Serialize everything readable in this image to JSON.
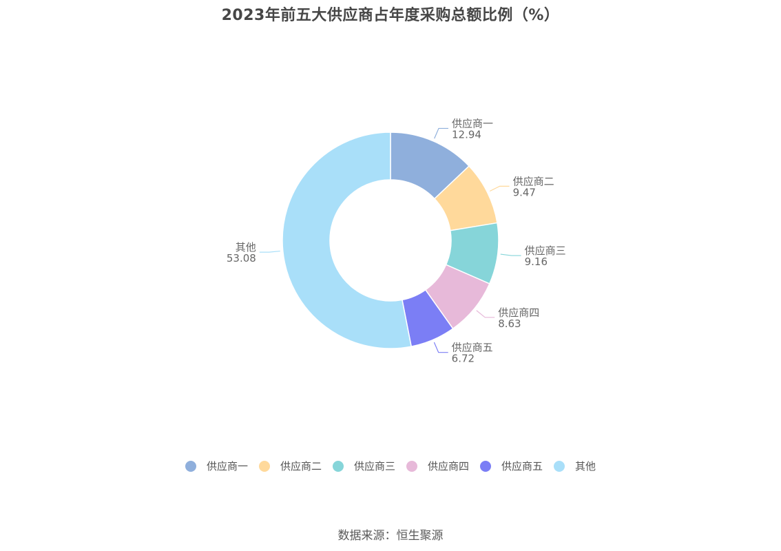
{
  "title": "2023年前五大供应商占年度采购总额比例（%）",
  "source": "数据来源：恒生聚源",
  "chart_data": {
    "type": "pie",
    "subtype": "donut",
    "title": "2023年前五大供应商占年度采购总额比例（%）",
    "legend_position": "bottom",
    "series": [
      {
        "name": "供应商一",
        "value": 12.94,
        "label": "12.94",
        "color": "#8fafdc"
      },
      {
        "name": "供应商二",
        "value": 9.47,
        "label": "9.47",
        "color": "#ffd99b"
      },
      {
        "name": "供应商三",
        "value": 9.16,
        "label": "9.16",
        "color": "#86d5d9"
      },
      {
        "name": "供应商四",
        "value": 8.63,
        "label": "8.63",
        "color": "#e7b9d9"
      },
      {
        "name": "供应商五",
        "value": 6.72,
        "label": "6.72",
        "color": "#7b7ef5"
      },
      {
        "name": "其他",
        "value": 53.08,
        "label": "53.08",
        "color": "#a9dff9"
      }
    ]
  }
}
